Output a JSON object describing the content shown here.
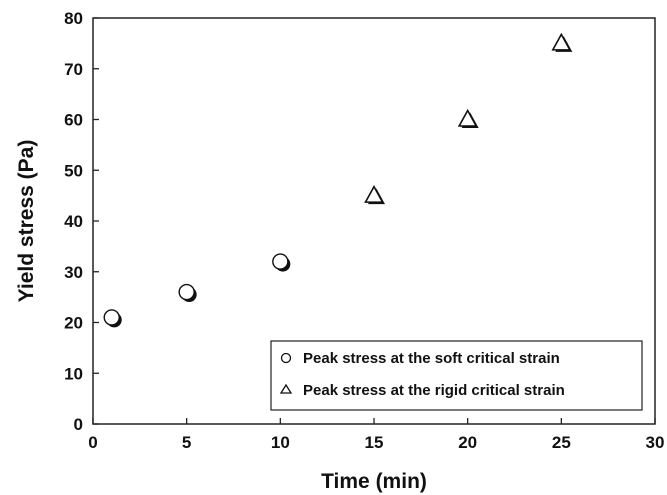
{
  "chart_data": {
    "type": "scatter",
    "xlabel": "Time (min)",
    "ylabel": "Yield stress (Pa)",
    "xlim": [
      0,
      30
    ],
    "ylim": [
      0,
      80
    ],
    "xticks": [
      0,
      5,
      10,
      15,
      20,
      25,
      30
    ],
    "yticks": [
      0,
      10,
      20,
      30,
      40,
      50,
      60,
      70,
      80
    ],
    "grid": false,
    "legend_position": "bottom-right",
    "series": [
      {
        "name": "Peak stress at the soft critical strain",
        "marker": "circle",
        "x": [
          1,
          5,
          10
        ],
        "y": [
          21,
          26,
          32
        ]
      },
      {
        "name": "Peak stress at the rigid critical strain",
        "marker": "triangle",
        "x": [
          15,
          20,
          25
        ],
        "y": [
          45,
          60,
          75
        ]
      }
    ]
  }
}
